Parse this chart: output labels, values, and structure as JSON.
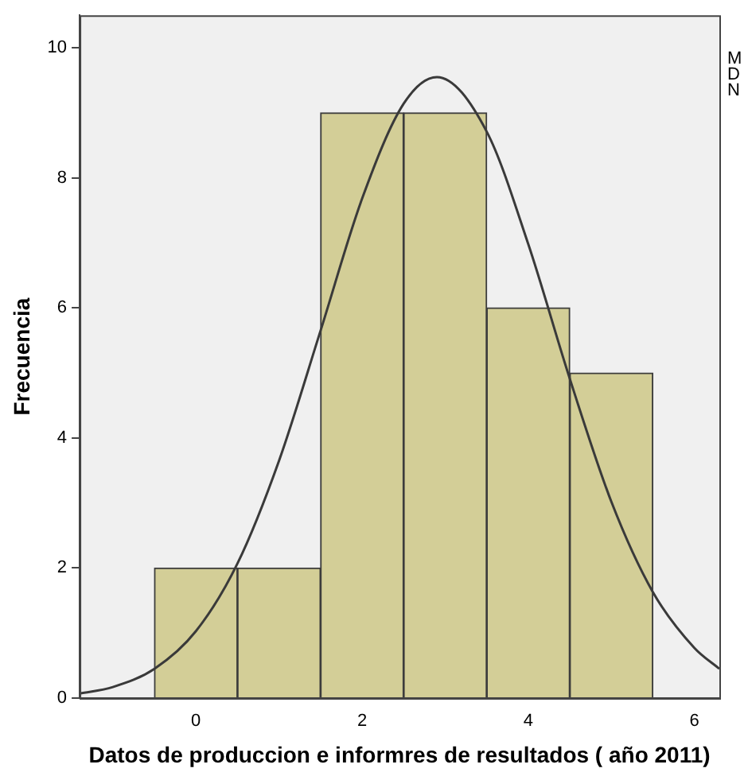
{
  "chart_data": {
    "type": "histogram",
    "xlabel": "Datos de produccion e informres de resultados ( año 2011)",
    "ylabel": "Frecuencia",
    "bins": [
      -0.5,
      0.5,
      1.5,
      2.5,
      3.5,
      4.5,
      5.5
    ],
    "values": [
      2,
      2,
      9,
      9,
      6,
      5
    ],
    "color": "#d3ce97",
    "series": [
      {
        "type": "line",
        "color": "#3a3a3a",
        "x": [
          -1.4,
          -1,
          -0.5,
          0,
          0.5,
          1,
          1.5,
          2,
          2.5,
          2.9,
          3.5,
          4,
          4.5,
          5,
          5.5,
          6,
          6.3
        ],
        "values": [
          0.07,
          0.17,
          0.45,
          1.03,
          2.07,
          3.65,
          5.65,
          7.68,
          9.14,
          9.55,
          8.71,
          6.98,
          4.91,
          3.02,
          1.63,
          0.77,
          0.45
        ]
      }
    ],
    "xlim": [
      -1.4,
      6.3
    ],
    "xticks": [
      0,
      2,
      4,
      6
    ],
    "ylim": [
      0,
      10.5
    ],
    "yticks": [
      0,
      2,
      4,
      6,
      8,
      10
    ],
    "annotations": [
      "M",
      "D",
      "N"
    ],
    "grid": false,
    "legend": false
  }
}
